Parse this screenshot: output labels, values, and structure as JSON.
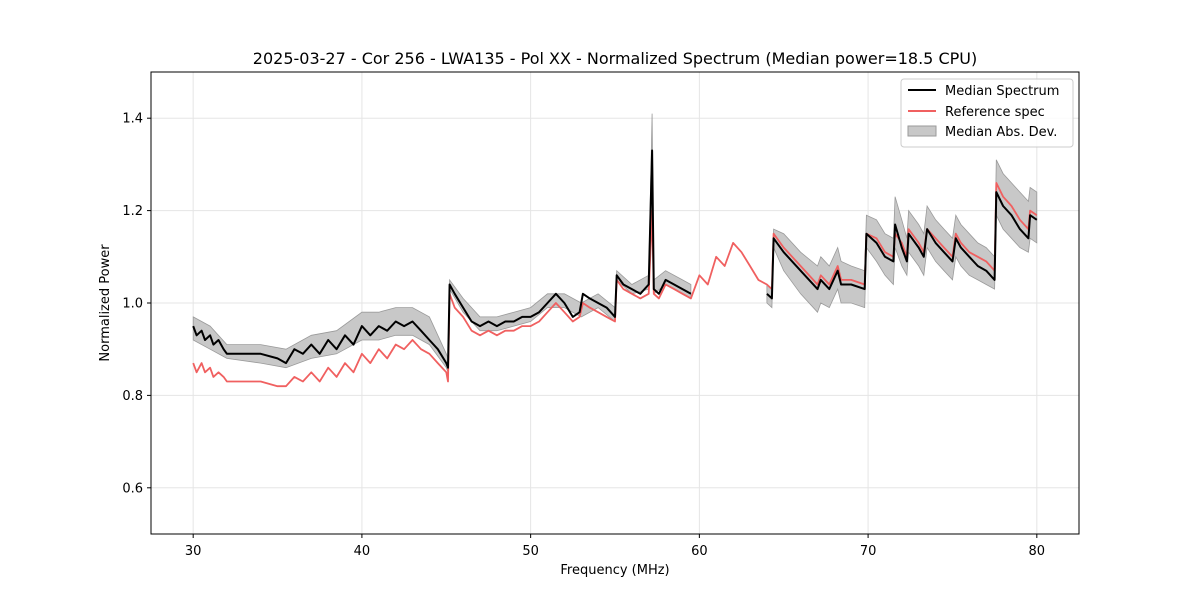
{
  "chart_data": {
    "type": "line",
    "title": "2025-03-27 - Cor 256 - LWA135 - Pol XX - Normalized Spectrum (Median power=18.5 CPU)",
    "xlabel": "Frequency (MHz)",
    "ylabel": "Normalized Power",
    "xlim": [
      27.5,
      82.5
    ],
    "ylim": [
      0.5,
      1.5
    ],
    "xticks": [
      30,
      40,
      50,
      60,
      70,
      80
    ],
    "xtick_labels": [
      "30",
      "40",
      "50",
      "60",
      "70",
      "80"
    ],
    "yticks": [
      0.6,
      0.8,
      1.0,
      1.2,
      1.4
    ],
    "ytick_labels": [
      "0.6",
      "0.8",
      "1.0",
      "1.2",
      "1.4"
    ],
    "grid": true,
    "legend_position": "top-right",
    "legend": [
      "Median Spectrum",
      "Reference spec",
      "Median Abs. Dev."
    ],
    "colors": {
      "median": "#000000",
      "reference": "#f06060",
      "mad_fill": "#c8c8c8",
      "mad_edge": "#9a9a9a",
      "grid": "#e5e5e5"
    },
    "series": [
      {
        "name": "Median Spectrum",
        "segments": [
          {
            "x": [
              30.0,
              30.2,
              30.5,
              30.7,
              31.0,
              31.2,
              31.5,
              31.8,
              32.0,
              32.5,
              33.0,
              34.0,
              35.0,
              35.5,
              36.0,
              36.5,
              37.0,
              37.5,
              38.0,
              38.5,
              39.0,
              39.5,
              40.0,
              40.5,
              41.0,
              41.5,
              42.0,
              42.5,
              43.0,
              43.5,
              44.0,
              44.5,
              45.0,
              45.1,
              45.2,
              45.5,
              46.0,
              46.5,
              47.0,
              47.5,
              48.0,
              48.5,
              49.0,
              49.5,
              50.0,
              50.5,
              51.0,
              51.5,
              52.0,
              52.5,
              52.9,
              53.1,
              53.5,
              54.0,
              54.5,
              55.0,
              55.1,
              55.5,
              56.0,
              56.5,
              57.0,
              57.2,
              57.3,
              57.6,
              58.0,
              58.5,
              59.0,
              59.5
            ],
            "y": [
              0.95,
              0.93,
              0.94,
              0.92,
              0.93,
              0.91,
              0.92,
              0.9,
              0.89,
              0.89,
              0.89,
              0.89,
              0.88,
              0.87,
              0.9,
              0.89,
              0.91,
              0.89,
              0.92,
              0.9,
              0.93,
              0.91,
              0.95,
              0.93,
              0.95,
              0.94,
              0.96,
              0.95,
              0.96,
              0.94,
              0.92,
              0.9,
              0.87,
              0.86,
              1.04,
              1.02,
              0.99,
              0.96,
              0.95,
              0.96,
              0.95,
              0.96,
              0.96,
              0.97,
              0.97,
              0.98,
              1.0,
              1.02,
              1.0,
              0.97,
              0.98,
              1.02,
              1.01,
              1.0,
              0.99,
              0.97,
              1.06,
              1.04,
              1.03,
              1.02,
              1.04,
              1.33,
              1.03,
              1.02,
              1.05,
              1.04,
              1.03,
              1.02
            ]
          },
          {
            "x": [
              64.0,
              64.3,
              64.4,
              65.0,
              66.0,
              67.0,
              67.2,
              67.7,
              68.2,
              68.4,
              69.0,
              69.8,
              69.9,
              70.5,
              71.0,
              71.5,
              71.6,
              72.0,
              72.3,
              72.4,
              73.0,
              73.3,
              73.5,
              74.0,
              74.5,
              75.0,
              75.2,
              75.5,
              76.0,
              76.5,
              77.0,
              77.5,
              77.6,
              78.0,
              78.5,
              79.0,
              79.5,
              79.6,
              80.0
            ],
            "y": [
              1.02,
              1.01,
              1.14,
              1.11,
              1.07,
              1.03,
              1.05,
              1.03,
              1.07,
              1.04,
              1.04,
              1.03,
              1.15,
              1.13,
              1.1,
              1.09,
              1.17,
              1.12,
              1.09,
              1.15,
              1.12,
              1.1,
              1.16,
              1.13,
              1.11,
              1.09,
              1.14,
              1.12,
              1.1,
              1.08,
              1.07,
              1.05,
              1.24,
              1.21,
              1.19,
              1.16,
              1.14,
              1.19,
              1.18
            ]
          }
        ]
      },
      {
        "name": "Reference spec",
        "segments": [
          {
            "x": [
              30.0,
              30.2,
              30.5,
              30.7,
              31.0,
              31.2,
              31.5,
              31.8,
              32.0,
              32.5,
              33.0,
              34.0,
              35.0,
              35.5,
              36.0,
              36.5,
              37.0,
              37.5,
              38.0,
              38.5,
              39.0,
              39.5,
              40.0,
              40.5,
              41.0,
              41.5,
              42.0,
              42.5,
              43.0,
              43.5,
              44.0,
              44.5,
              45.0,
              45.1,
              45.2,
              45.5,
              46.0,
              46.5,
              47.0,
              47.5,
              48.0,
              48.5,
              49.0,
              49.5,
              50.0,
              50.5,
              51.0,
              51.5,
              52.0,
              52.5,
              52.9,
              53.1,
              53.5,
              54.0,
              54.5,
              55.0,
              55.1,
              55.5,
              56.0,
              56.5,
              57.0,
              57.2,
              57.3,
              57.6,
              58.0,
              58.5,
              59.0,
              59.5,
              60.0,
              60.5,
              61.0,
              61.5,
              62.0,
              62.5,
              63.0,
              63.5,
              64.0,
              64.3,
              64.4,
              65.0,
              66.0,
              67.0,
              67.2,
              67.7,
              68.2,
              68.4,
              69.0,
              69.8,
              69.9,
              70.5,
              71.0,
              71.5,
              71.6,
              72.0,
              72.3,
              72.4,
              73.0,
              73.3,
              73.5,
              74.0,
              74.5,
              75.0,
              75.2,
              75.5,
              76.0,
              76.5,
              77.0,
              77.5,
              77.6,
              78.0,
              78.5,
              79.0,
              79.5,
              79.6,
              80.0
            ],
            "y": [
              0.87,
              0.85,
              0.87,
              0.85,
              0.86,
              0.84,
              0.85,
              0.84,
              0.83,
              0.83,
              0.83,
              0.83,
              0.82,
              0.82,
              0.84,
              0.83,
              0.85,
              0.83,
              0.86,
              0.84,
              0.87,
              0.85,
              0.89,
              0.87,
              0.9,
              0.88,
              0.91,
              0.9,
              0.92,
              0.9,
              0.89,
              0.87,
              0.85,
              0.83,
              1.02,
              0.99,
              0.97,
              0.94,
              0.93,
              0.94,
              0.93,
              0.94,
              0.94,
              0.95,
              0.95,
              0.96,
              0.98,
              1.0,
              0.98,
              0.96,
              0.97,
              1.0,
              0.99,
              0.98,
              0.97,
              0.96,
              1.05,
              1.03,
              1.02,
              1.01,
              1.02,
              1.2,
              1.02,
              1.01,
              1.04,
              1.03,
              1.02,
              1.01,
              1.06,
              1.04,
              1.1,
              1.08,
              1.13,
              1.11,
              1.08,
              1.05,
              1.04,
              1.03,
              1.15,
              1.12,
              1.08,
              1.04,
              1.06,
              1.04,
              1.08,
              1.05,
              1.05,
              1.04,
              1.15,
              1.14,
              1.11,
              1.1,
              1.15,
              1.13,
              1.1,
              1.16,
              1.13,
              1.11,
              1.16,
              1.14,
              1.12,
              1.1,
              1.15,
              1.13,
              1.11,
              1.1,
              1.09,
              1.07,
              1.26,
              1.23,
              1.21,
              1.18,
              1.16,
              1.2,
              1.19
            ]
          }
        ]
      },
      {
        "name": "Median Abs. Dev.",
        "kind": "band",
        "segments": [
          {
            "x": [
              30.0,
              31.0,
              32.0,
              34.0,
              35.5,
              37.0,
              38.5,
              40.0,
              41.0,
              42.0,
              43.0,
              44.0,
              45.0,
              45.1,
              45.2,
              46.0,
              47.0,
              48.0,
              49.0,
              50.0,
              51.0,
              52.0,
              53.0,
              54.0,
              55.0,
              55.1,
              56.0,
              57.0,
              57.2,
              57.3,
              58.0,
              59.0,
              59.5
            ],
            "lower": [
              0.92,
              0.9,
              0.88,
              0.87,
              0.86,
              0.88,
              0.89,
              0.92,
              0.92,
              0.93,
              0.93,
              0.91,
              0.86,
              0.85,
              1.03,
              0.98,
              0.94,
              0.94,
              0.95,
              0.96,
              0.99,
              0.99,
              0.97,
              0.99,
              0.96,
              1.05,
              1.02,
              1.03,
              1.26,
              1.02,
              1.04,
              1.02,
              1.01
            ],
            "upper": [
              0.97,
              0.95,
              0.91,
              0.91,
              0.9,
              0.93,
              0.94,
              0.98,
              0.98,
              0.99,
              0.99,
              0.97,
              0.89,
              0.88,
              1.05,
              1.01,
              0.97,
              0.97,
              0.98,
              0.99,
              1.02,
              1.02,
              1.0,
              1.02,
              0.99,
              1.07,
              1.04,
              1.06,
              1.41,
              1.05,
              1.07,
              1.05,
              1.04
            ]
          },
          {
            "x": [
              64.0,
              64.3,
              64.4,
              65.0,
              66.0,
              67.0,
              67.2,
              67.7,
              68.2,
              68.4,
              69.0,
              69.8,
              69.9,
              70.5,
              71.0,
              71.5,
              71.6,
              72.0,
              72.3,
              72.4,
              73.0,
              73.3,
              73.5,
              74.0,
              74.5,
              75.0,
              75.2,
              75.5,
              76.0,
              76.5,
              77.0,
              77.5,
              77.6,
              78.0,
              78.5,
              79.0,
              79.5,
              79.6,
              80.0
            ],
            "lower": [
              1.0,
              0.99,
              1.12,
              1.07,
              1.02,
              0.98,
              1.0,
              0.99,
              1.03,
              1.0,
              1.0,
              0.99,
              1.12,
              1.09,
              1.06,
              1.04,
              1.12,
              1.08,
              1.06,
              1.11,
              1.08,
              1.06,
              1.12,
              1.09,
              1.07,
              1.05,
              1.1,
              1.08,
              1.06,
              1.05,
              1.04,
              1.03,
              1.19,
              1.16,
              1.14,
              1.12,
              1.11,
              1.14,
              1.13
            ],
            "upper": [
              1.04,
              1.03,
              1.16,
              1.15,
              1.11,
              1.08,
              1.1,
              1.08,
              1.12,
              1.09,
              1.08,
              1.07,
              1.19,
              1.18,
              1.15,
              1.14,
              1.23,
              1.18,
              1.14,
              1.2,
              1.17,
              1.15,
              1.21,
              1.18,
              1.16,
              1.14,
              1.19,
              1.17,
              1.15,
              1.13,
              1.12,
              1.1,
              1.31,
              1.28,
              1.26,
              1.24,
              1.22,
              1.25,
              1.24
            ]
          }
        ]
      }
    ]
  }
}
